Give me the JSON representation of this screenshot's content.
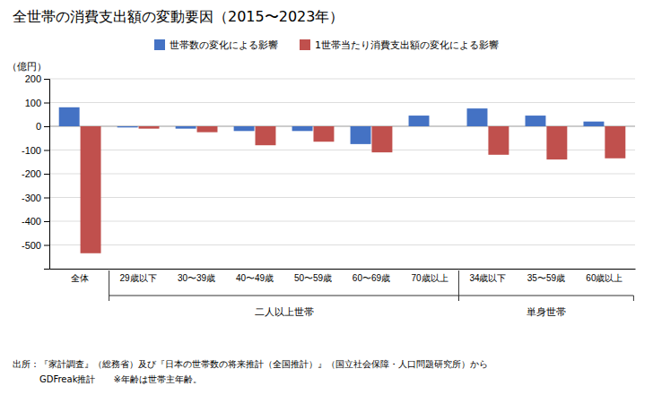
{
  "chart_data": {
    "type": "bar",
    "title": "全世帯の消費支出額の変動要因（2015〜2023年）",
    "ylabel": "（億円）",
    "categories": [
      "全体",
      "29歳以下",
      "30〜39歳",
      "40〜49歳",
      "50〜59歳",
      "60〜69歳",
      "70歳以上",
      "34歳以下",
      "35〜59歳",
      "60歳以上"
    ],
    "series": [
      {
        "name": "世帯数の変化による影響",
        "color": "#4472C4",
        "values": [
          80,
          -5,
          -10,
          -20,
          -20,
          -75,
          45,
          75,
          45,
          20
        ]
      },
      {
        "name": "1世帯当たり消費支出額の変化による影響",
        "color": "#C0504D",
        "values": [
          -535,
          -10,
          -25,
          -80,
          -65,
          -110,
          0,
          -120,
          -140,
          -135
        ]
      }
    ],
    "ylim": [
      -600,
      200
    ],
    "yticks": [
      -500,
      -400,
      -300,
      -200,
      -100,
      0,
      100,
      200
    ],
    "grid": true,
    "legend": "top",
    "annotations": [
      {
        "text": "二人以上世帯",
        "from": "29歳以下",
        "to": "70歳以上"
      },
      {
        "text": "単身世帯",
        "from": "34歳以下",
        "to": "60歳以上"
      }
    ],
    "source": [
      "出所：『家計調査』（総務省）及び『日本の世帯数の将来推計（全国推計）』（国立社会保障・人口問題研究所）から",
      "　　　GDFreak推計　　※年齢は世帯主年齢。"
    ]
  }
}
